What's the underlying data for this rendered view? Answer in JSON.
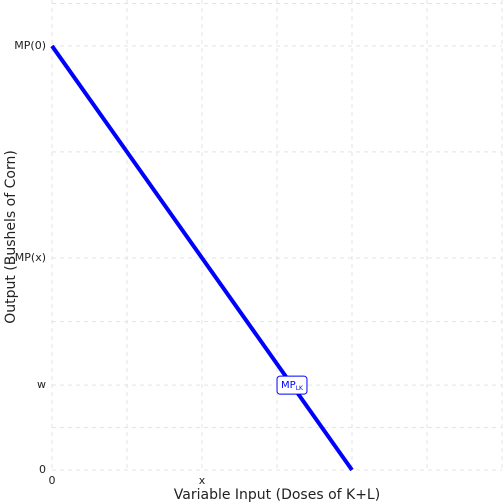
{
  "chart_data": {
    "type": "line",
    "x_label": "Variable Input (Doses of K+L)",
    "y_label": "Output (Bushels of Corn)",
    "x": [
      0,
      4
    ],
    "series": [
      {
        "color": "#0000ff",
        "values": [
          10,
          0
        ]
      }
    ],
    "xlim": [
      0,
      6
    ],
    "ylim": [
      0,
      11
    ],
    "xticks": [
      0,
      {
        "value": 2,
        "label": "x"
      }
    ],
    "yticks": [
      0,
      {
        "value": 2,
        "label": "w"
      },
      {
        "value": 5,
        "label": "MP(x)"
      },
      {
        "value": 10,
        "label": "MP(0)"
      }
    ],
    "grid": true,
    "annotation": {
      "text": "MP",
      "subscript": "LK",
      "x": 3.2,
      "y": 2
    }
  }
}
